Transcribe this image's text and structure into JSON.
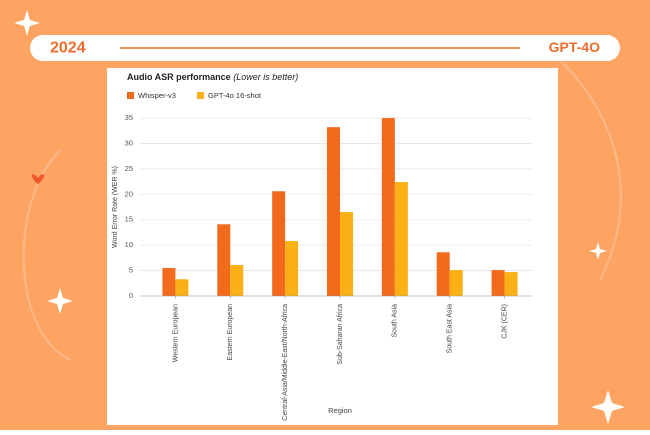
{
  "header": {
    "year": "2024",
    "model": "GPT-4O"
  },
  "chart_data": {
    "type": "bar",
    "title": "Audio ASR performance",
    "subtitle": "(Lower is better)",
    "y_label": "Word Error Rate (WER %)",
    "x_label": "Region",
    "categories": [
      "Western European",
      "Eastern European",
      "Central-Asia/Middle-East/North-Africa",
      "Sub-Saharan Africa",
      "South Asia",
      "South East Asia",
      "CJK (CER)"
    ],
    "series": [
      {
        "name": "Whisper-v3",
        "color": "#f26b1d",
        "values": [
          5.5,
          14.1,
          20.6,
          33.2,
          35.0,
          8.6,
          5.1
        ]
      },
      {
        "name": "GPT-4o 16-shot",
        "color": "#fbb116",
        "values": [
          3.3,
          6.1,
          10.8,
          16.5,
          22.4,
          5.1,
          4.7
        ]
      }
    ],
    "ylim": [
      0,
      35
    ],
    "yticks": [
      0,
      5,
      10,
      15,
      20,
      25,
      30,
      35
    ],
    "grid": true
  }
}
